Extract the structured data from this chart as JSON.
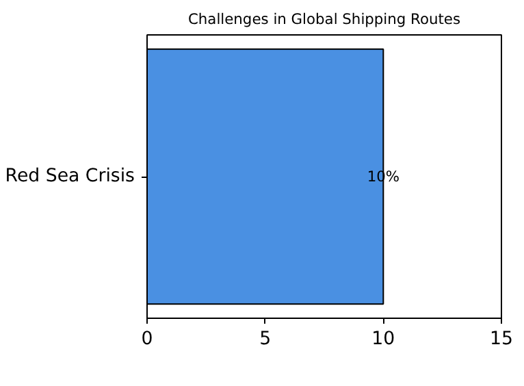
{
  "chart_data": {
    "type": "bar",
    "orientation": "horizontal",
    "title": "Challenges in Global Shipping Routes",
    "categories": [
      "Red Sea Crisis"
    ],
    "values": [
      10
    ],
    "value_labels": [
      "10%"
    ],
    "color": "#4a90e2",
    "xlim": [
      0,
      15
    ],
    "xticks": [
      0,
      5,
      10,
      15
    ],
    "grid": false
  }
}
